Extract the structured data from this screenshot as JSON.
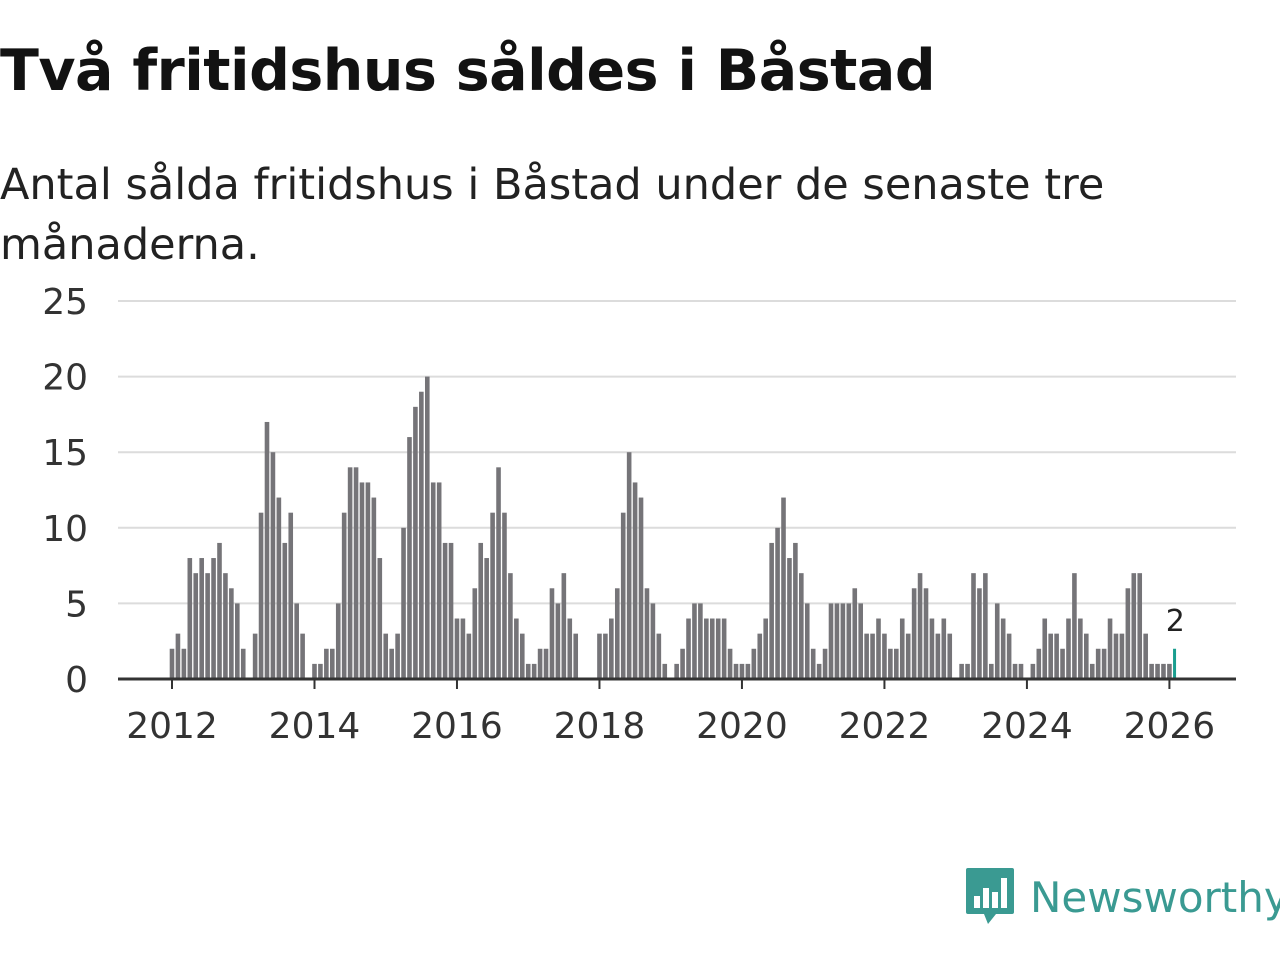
{
  "header": {
    "title": "Två fritidshus såldes i Båstad",
    "subtitle": "Antal sålda fritidshus i Båstad under de senaste tre månaderna."
  },
  "chart_data": {
    "type": "bar",
    "title": "Två fritidshus såldes i Båstad",
    "subtitle": "Antal sålda fritidshus i Båstad under de senaste tre månaderna.",
    "xlabel": "",
    "ylabel": "",
    "ylim": [
      0,
      25
    ],
    "yticks": [
      "0",
      "5",
      "10",
      "15",
      "20",
      "25"
    ],
    "xticks": [
      {
        "label": "2012",
        "year": 2012
      },
      {
        "label": "2014",
        "year": 2014
      },
      {
        "label": "2016",
        "year": 2016
      },
      {
        "label": "2018",
        "year": 2018
      },
      {
        "label": "2020",
        "year": 2020
      },
      {
        "label": "2022",
        "year": 2022
      },
      {
        "label": "2024",
        "year": 2024
      },
      {
        "label": "2026",
        "year": 2026
      }
    ],
    "grid": true,
    "start": {
      "year": 2012,
      "month": 1
    },
    "values": [
      2,
      3,
      2,
      8,
      7,
      8,
      7,
      8,
      9,
      7,
      6,
      5,
      2,
      0,
      3,
      11,
      17,
      15,
      12,
      9,
      11,
      5,
      3,
      0,
      1,
      1,
      2,
      2,
      5,
      11,
      14,
      14,
      13,
      13,
      12,
      8,
      3,
      2,
      3,
      10,
      16,
      18,
      19,
      20,
      13,
      13,
      9,
      9,
      4,
      4,
      3,
      6,
      9,
      8,
      11,
      14,
      11,
      7,
      4,
      3,
      1,
      1,
      2,
      2,
      6,
      5,
      7,
      4,
      3,
      0,
      0,
      0,
      3,
      3,
      4,
      6,
      11,
      15,
      13,
      12,
      6,
      5,
      3,
      1,
      0,
      1,
      2,
      4,
      5,
      5,
      4,
      4,
      4,
      4,
      2,
      1,
      1,
      1,
      2,
      3,
      4,
      9,
      10,
      12,
      8,
      9,
      7,
      5,
      2,
      1,
      2,
      5,
      5,
      5,
      5,
      6,
      5,
      3,
      3,
      4,
      3,
      2,
      2,
      4,
      3,
      6,
      7,
      6,
      4,
      3,
      4,
      3,
      0,
      1,
      1,
      7,
      6,
      7,
      1,
      5,
      4,
      3,
      1,
      1,
      0,
      1,
      2,
      4,
      3,
      3,
      2,
      4,
      7,
      4,
      3,
      1,
      2,
      2,
      4,
      3,
      3,
      6,
      7,
      7,
      3,
      1,
      1,
      1,
      1,
      2
    ],
    "highlight": {
      "value": 2,
      "label": "2",
      "color": "#1a9e8f"
    },
    "bar_color": "#757478"
  },
  "logo": {
    "text": "Newsworthy",
    "color": "#3a9a92"
  }
}
